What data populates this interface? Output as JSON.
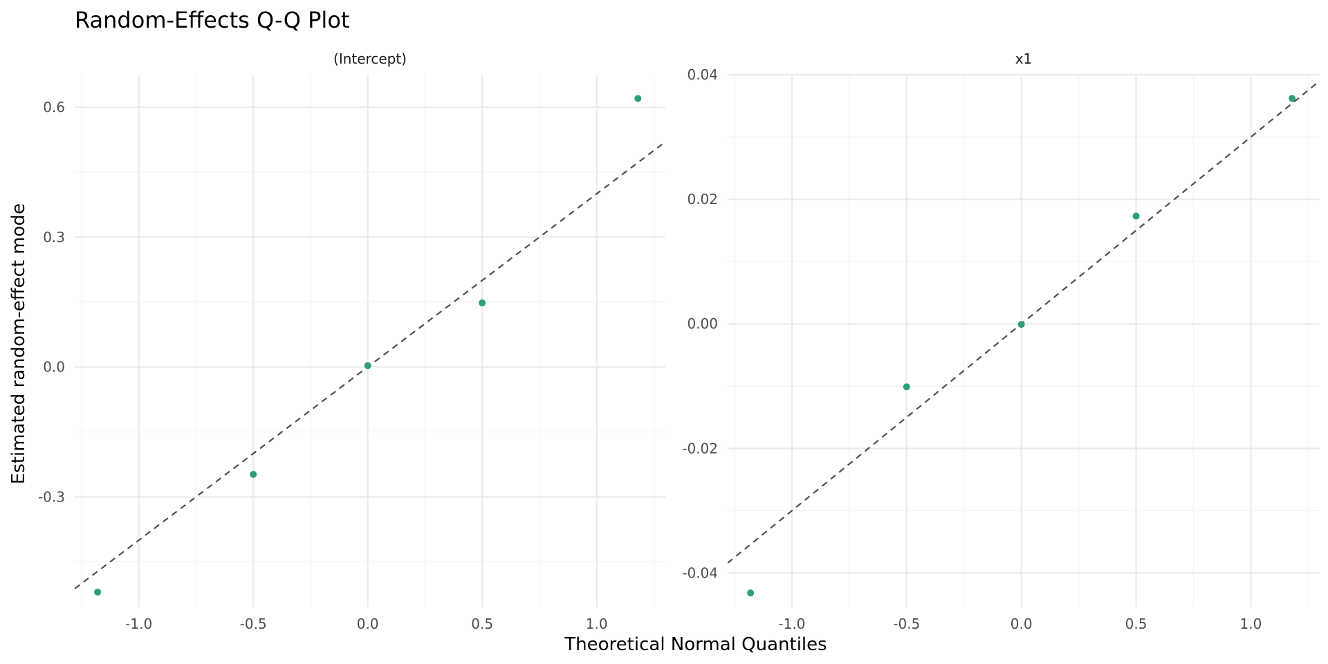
{
  "chart_data": {
    "type": "scatter",
    "title": "Random-Effects Q-Q Plot",
    "xlabel": "Theoretical Normal Quantiles",
    "ylabel": "Estimated random-effect mode",
    "point_color": "#2e9e78",
    "line_color": "#4d4d4d",
    "grid": true,
    "panels": [
      {
        "strip": "(Intercept)",
        "x": [
          -1.18,
          -0.5,
          0.0,
          0.5,
          1.18
        ],
        "y": [
          -0.52,
          -0.248,
          0.003,
          0.148,
          0.62
        ],
        "ref_line": {
          "intercept": 0.0,
          "slope": 0.4
        },
        "xlim": [
          -1.28,
          1.3
        ],
        "ylim": [
          -0.555,
          0.675
        ],
        "xticks": [
          -1.0,
          -0.5,
          0.0,
          0.5,
          1.0
        ],
        "xtick_labels": [
          "-1.0",
          "-0.5",
          "0.0",
          "0.5",
          "1.0"
        ],
        "yticks": [
          -0.3,
          0.0,
          0.3,
          0.6
        ],
        "ytick_labels": [
          "-0.3",
          "0.0",
          "0.3",
          "0.6"
        ]
      },
      {
        "strip": "x1",
        "x": [
          -1.18,
          -0.5,
          0.0,
          0.5,
          1.18
        ],
        "y": [
          -0.0432,
          -0.0101,
          -0.0001,
          0.0173,
          0.0362
        ],
        "ref_line": {
          "intercept": 0.0,
          "slope": 0.03
        },
        "xlim": [
          -1.28,
          1.3
        ],
        "ylim": [
          -0.0455,
          0.04
        ],
        "xticks": [
          -1.0,
          -0.5,
          0.0,
          0.5,
          1.0
        ],
        "xtick_labels": [
          "-1.0",
          "-0.5",
          "0.0",
          "0.5",
          "1.0"
        ],
        "yticks": [
          -0.04,
          -0.02,
          0.0,
          0.02,
          0.04
        ],
        "ytick_labels": [
          "-0.04",
          "-0.02",
          "0.00",
          "0.02",
          "0.04"
        ]
      }
    ]
  }
}
